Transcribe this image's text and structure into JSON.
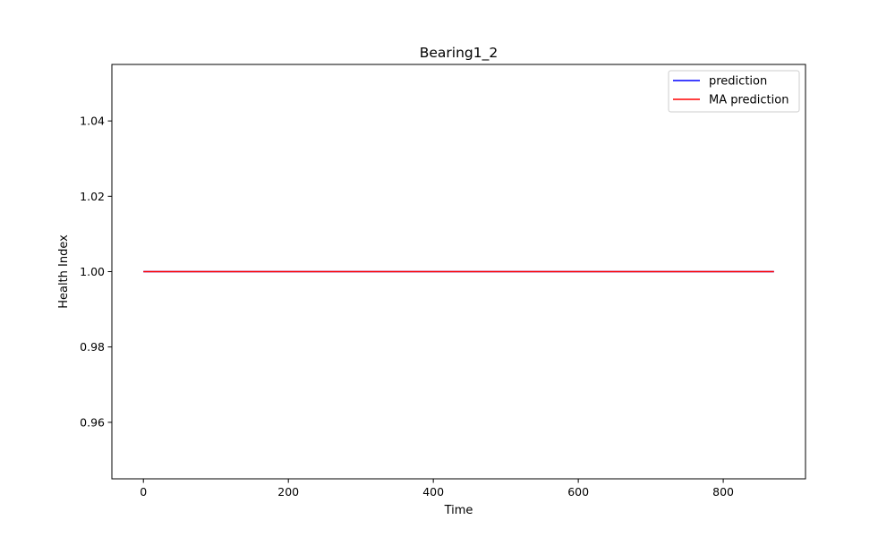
{
  "chart_data": {
    "type": "line",
    "title": "Bearing1_2",
    "xlabel": "Time",
    "ylabel": "Health Index",
    "xlim": [
      -43.5,
      913.5
    ],
    "ylim": [
      0.945,
      1.055
    ],
    "xticks": [
      0,
      200,
      400,
      600,
      800
    ],
    "yticks": [
      0.96,
      0.98,
      1.0,
      1.02,
      1.04
    ],
    "ytick_labels": [
      "0.96",
      "0.98",
      "1.00",
      "1.02",
      "1.04"
    ],
    "grid": false,
    "legend": {
      "placement": "top-right"
    },
    "series": [
      {
        "name": "prediction",
        "color": "#0000ff",
        "x": [
          0,
          870
        ],
        "y": [
          1.0,
          1.0
        ]
      },
      {
        "name": "MA prediction",
        "color": "#ff0000",
        "x": [
          0,
          870
        ],
        "y": [
          1.0,
          1.0
        ]
      }
    ]
  }
}
